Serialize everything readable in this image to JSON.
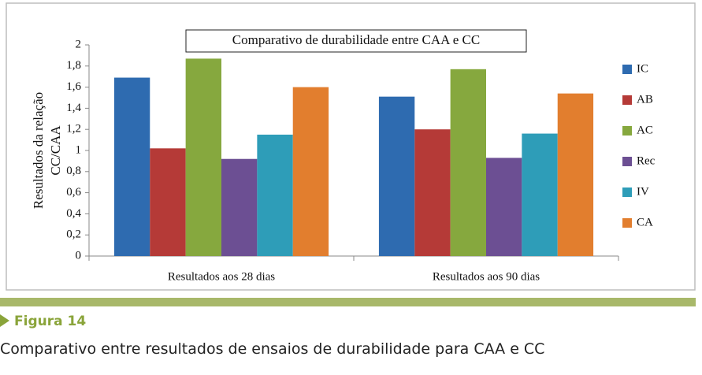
{
  "chart_data": {
    "type": "bar",
    "title": "Comparativo de durabilidade entre CAA e CC",
    "ylabel": [
      "Resultados da relação",
      "CC/CAA"
    ],
    "categories": [
      "Resultados aos 28 dias",
      "Resultados aos 90 dias"
    ],
    "series": [
      {
        "name": "IC",
        "color": "#2e6bb0",
        "values": [
          1.69,
          1.51
        ]
      },
      {
        "name": "AB",
        "color": "#b53a37",
        "values": [
          1.02,
          1.2
        ]
      },
      {
        "name": "AC",
        "color": "#86a83e",
        "values": [
          1.87,
          1.77
        ]
      },
      {
        "name": "Rec",
        "color": "#6c4f93",
        "values": [
          0.92,
          0.93
        ]
      },
      {
        "name": "IV",
        "color": "#2e9db8",
        "values": [
          1.15,
          1.16
        ]
      },
      {
        "name": "CA",
        "color": "#e27e2e",
        "values": [
          1.6,
          1.54
        ]
      }
    ],
    "ylim": [
      0,
      2
    ],
    "yticks": [
      0,
      {
        "value": 0.2,
        "label": "0,2"
      },
      {
        "value": 0.4,
        "label": "0,4"
      },
      {
        "value": 0.6,
        "label": "0,6"
      },
      {
        "value": 0.8,
        "label": "0,8"
      },
      1,
      {
        "value": 1.2,
        "label": "1,2"
      },
      {
        "value": 1.4,
        "label": "1,4"
      },
      {
        "value": 1.6,
        "label": "1,6"
      },
      {
        "value": 1.8,
        "label": "1,8"
      },
      2
    ],
    "grid": false,
    "legend": "right"
  },
  "figure": {
    "label": "Figura 14",
    "caption": "Comparativo entre resultados de ensaios de durabilidade para CAA e CC"
  }
}
